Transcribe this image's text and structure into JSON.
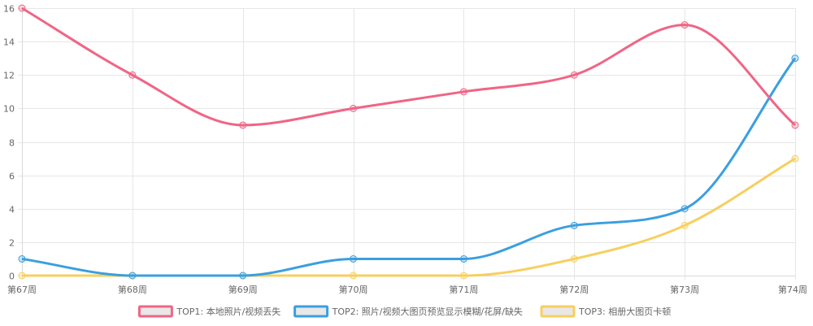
{
  "chart_data": {
    "type": "line",
    "title": "",
    "xlabel": "",
    "ylabel": "",
    "categories": [
      "第67周",
      "第68周",
      "第69周",
      "第70周",
      "第71周",
      "第72周",
      "第73周",
      "第74周"
    ],
    "ylim": [
      0,
      16
    ],
    "yticks": [
      "0",
      "2",
      "4",
      "6",
      "8",
      "10",
      "12",
      "14",
      "16"
    ],
    "grid": true,
    "legend_position": "bottom",
    "series": [
      {
        "name": "TOP1: 本地照片/视频丢失",
        "color": "#f06585",
        "values": [
          16,
          12,
          9,
          10,
          11,
          12,
          15,
          9
        ]
      },
      {
        "name": "TOP2: 照片/视频大图页预览显示模糊/花屏/缺失",
        "color": "#3a9fe0",
        "values": [
          1,
          0,
          0,
          1,
          1,
          3,
          4,
          13
        ]
      },
      {
        "name": "TOP3: 相册大图页卡顿",
        "color": "#f7cf5f",
        "values": [
          0,
          0,
          0,
          0,
          0,
          1,
          3,
          7
        ]
      }
    ]
  }
}
